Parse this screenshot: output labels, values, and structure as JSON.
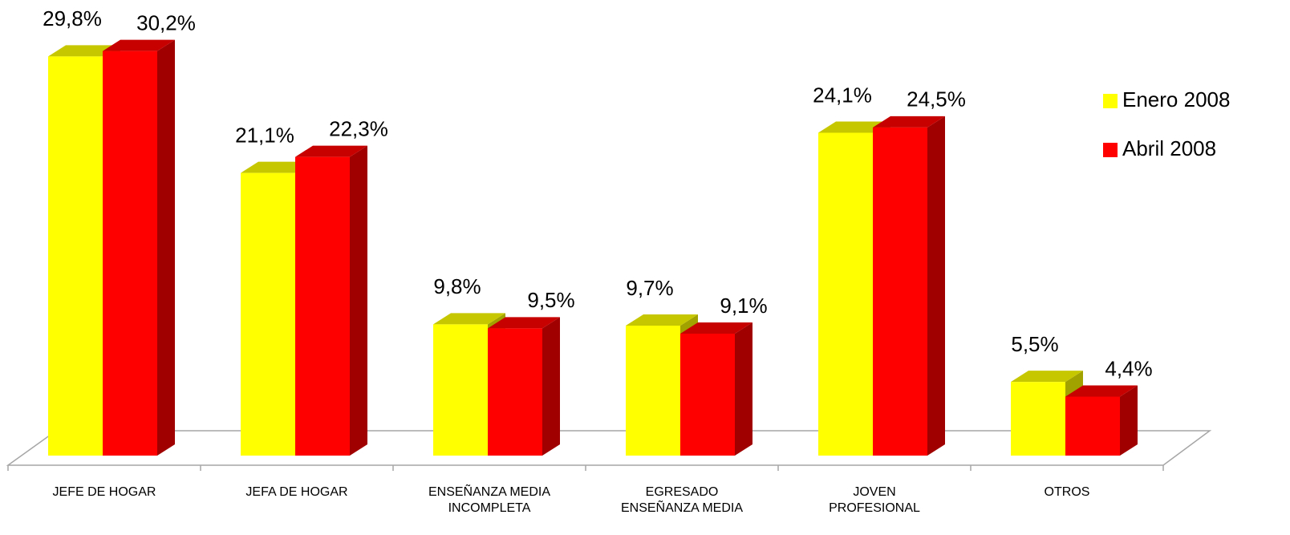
{
  "chart_data": {
    "type": "bar3d",
    "categories": [
      "JEFE DE HOGAR",
      "JEFA DE HOGAR",
      "ENSEÑANZA MEDIA\nINCOMPLETA",
      "EGRESADO\nENSEÑANZA MEDIA",
      "JOVEN\nPROFESIONAL",
      "OTROS"
    ],
    "series": [
      {
        "name": "Enero 2008",
        "color": "#ffff00",
        "values": [
          29.8,
          21.1,
          9.8,
          9.7,
          24.1,
          5.5
        ],
        "value_labels": [
          "29,8%",
          "21,1%",
          "9,8%",
          "9,7%",
          "24,1%",
          "5,5%"
        ]
      },
      {
        "name": "Abril 2008",
        "color": "#ff0000",
        "values": [
          30.2,
          22.3,
          9.5,
          9.1,
          24.5,
          4.4
        ],
        "value_labels": [
          "30,2%",
          "22,3%",
          "9,5%",
          "9,1%",
          "24,5%",
          "4,4%"
        ]
      }
    ],
    "ylim": [
      0,
      30
    ],
    "legend": "right"
  }
}
